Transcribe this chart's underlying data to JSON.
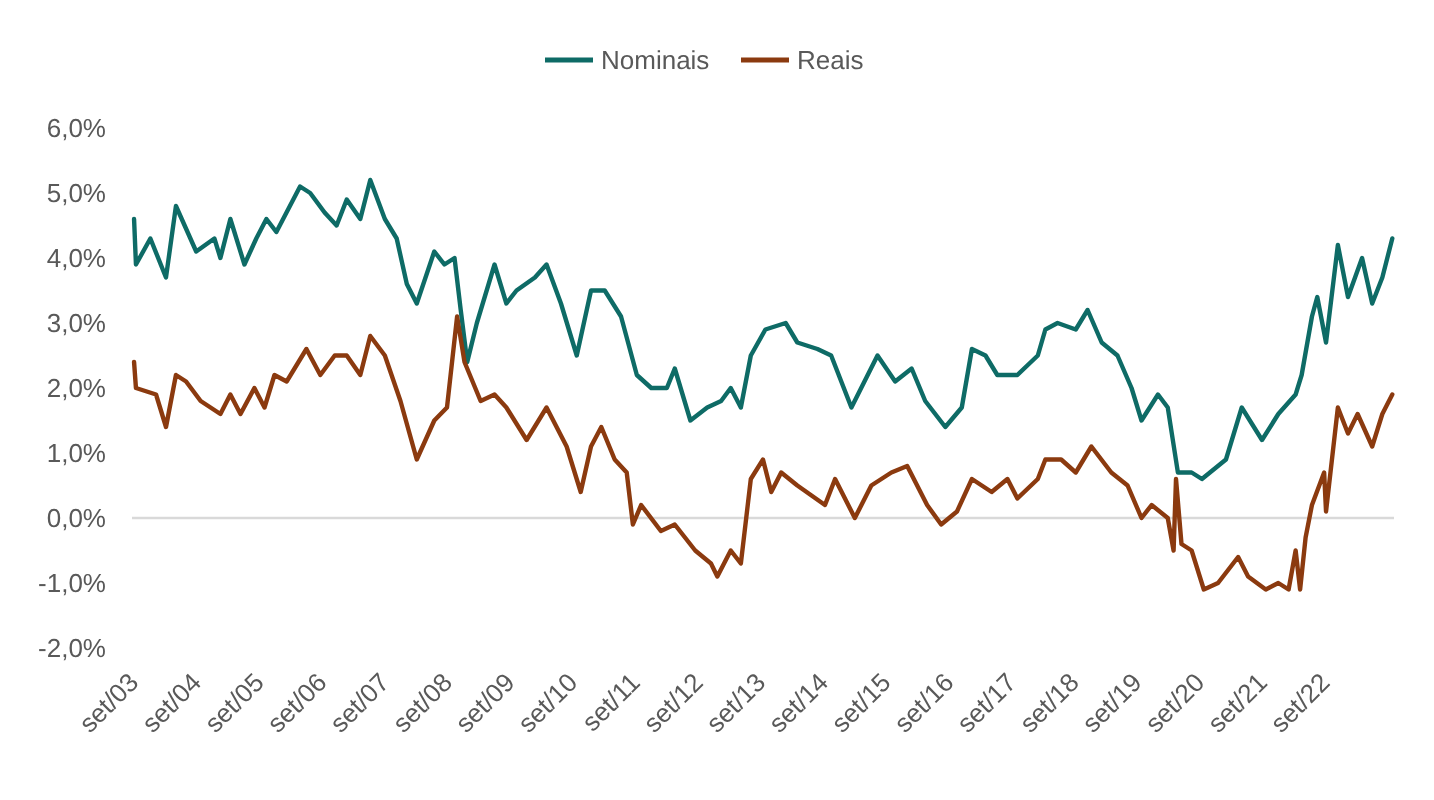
{
  "chart_data": {
    "type": "line",
    "legend": "top",
    "line_style": "solid",
    "xlim": [
      "2003-09-01",
      "2023-10-18"
    ],
    "xticks": [
      {
        "value": "2003-09-01",
        "label": "set/03"
      },
      {
        "value": "2004-09-01",
        "label": "set/04"
      },
      {
        "value": "2005-09-01",
        "label": "set/05"
      },
      {
        "value": "2006-09-01",
        "label": "set/06"
      },
      {
        "value": "2007-09-01",
        "label": "set/07"
      },
      {
        "value": "2008-09-01",
        "label": "set/08"
      },
      {
        "value": "2009-09-01",
        "label": "set/09"
      },
      {
        "value": "2010-09-01",
        "label": "set/10"
      },
      {
        "value": "2011-09-01",
        "label": "set/11"
      },
      {
        "value": "2012-09-01",
        "label": "set/12"
      },
      {
        "value": "2013-09-01",
        "label": "set/13"
      },
      {
        "value": "2014-09-01",
        "label": "set/14"
      },
      {
        "value": "2015-09-01",
        "label": "set/15"
      },
      {
        "value": "2016-09-01",
        "label": "set/16"
      },
      {
        "value": "2017-09-01",
        "label": "set/17"
      },
      {
        "value": "2018-09-01",
        "label": "set/18"
      },
      {
        "value": "2019-09-01",
        "label": "set/19"
      },
      {
        "value": "2020-09-01",
        "label": "set/20"
      },
      {
        "value": "2021-09-01",
        "label": "set/21"
      },
      {
        "value": "2022-09-01",
        "label": "set/22"
      }
    ],
    "ylim": [
      -2,
      6
    ],
    "yticks": [
      {
        "value": -2,
        "label": "-2,0%"
      },
      {
        "value": -1,
        "label": "-1,0%"
      },
      {
        "value": 0,
        "label": "0,0%"
      },
      {
        "value": 1,
        "label": "1,0%"
      },
      {
        "value": 2,
        "label": "2,0%"
      },
      {
        "value": 3,
        "label": "3,0%"
      },
      {
        "value": 4,
        "label": "4,0%"
      },
      {
        "value": 5,
        "label": "5,0%"
      },
      {
        "value": 6,
        "label": "6,0%"
      }
    ],
    "ref_lines": [
      {
        "axis": "y",
        "value": 0,
        "color": "#d9d9d9"
      }
    ],
    "series": [
      {
        "name": "Nominais",
        "color": "#0e6b66",
        "x": [
          "2003-09-13",
          "2003-09-24",
          "2003-12-17",
          "2004-03-17",
          "2004-05-14",
          "2004-09-09",
          "2004-12-24",
          "2005-01-28",
          "2005-03-27",
          "2005-06-17",
          "2005-08-25",
          "2005-10-23",
          "2005-12-20",
          "2006-05-07",
          "2006-07-05",
          "2006-09-27",
          "2006-12-06",
          "2007-02-03",
          "2007-04-23",
          "2007-06-20",
          "2007-09-13",
          "2007-11-21",
          "2008-01-19",
          "2008-03-17",
          "2008-06-27",
          "2008-08-25",
          "2008-10-23",
          "2008-11-28",
          "2009-01-05",
          "2009-03-02",
          "2009-06-13",
          "2009-08-21",
          "2009-10-19",
          "2010-02-03",
          "2010-04-12",
          "2010-07-05",
          "2010-10-05",
          "2010-12-27",
          "2011-03-17",
          "2011-06-20",
          "2011-09-20",
          "2011-12-13",
          "2012-03-13",
          "2012-04-28",
          "2012-07-28",
          "2012-11-03",
          "2013-01-23",
          "2013-03-20",
          "2013-05-18",
          "2013-07-15",
          "2013-10-08",
          "2014-02-03",
          "2014-04-12",
          "2014-08-07",
          "2014-10-26",
          "2015-02-21",
          "2015-07-23",
          "2015-11-03",
          "2016-02-07",
          "2016-04-26",
          "2016-08-21",
          "2016-11-25",
          "2017-01-23",
          "2017-04-12",
          "2017-06-20",
          "2017-10-15",
          "2018-02-11",
          "2018-03-27",
          "2018-06-06",
          "2018-09-20",
          "2018-11-28",
          "2019-02-18",
          "2019-05-21",
          "2019-08-11",
          "2019-10-08",
          "2020-01-12",
          "2020-03-09",
          "2020-05-07",
          "2020-07-26",
          "2020-09-24",
          "2021-02-11",
          "2021-05-14",
          "2021-09-09",
          "2021-12-13",
          "2022-03-24",
          "2022-04-28",
          "2022-06-27",
          "2022-07-28",
          "2022-09-17",
          "2022-11-25",
          "2023-01-23",
          "2023-04-15",
          "2023-06-13",
          "2023-08-11",
          "2023-10-08"
        ],
        "values": [
          4.6,
          3.9,
          4.3,
          3.7,
          4.8,
          4.1,
          4.3,
          4.0,
          4.6,
          3.9,
          4.3,
          4.6,
          4.4,
          5.1,
          5.0,
          4.7,
          4.5,
          4.9,
          4.6,
          5.2,
          4.6,
          4.3,
          3.6,
          3.3,
          4.1,
          3.9,
          4.0,
          3.2,
          2.4,
          3.0,
          3.9,
          3.3,
          3.5,
          3.7,
          3.9,
          3.3,
          2.5,
          3.5,
          3.5,
          3.1,
          2.2,
          2.0,
          2.0,
          2.3,
          1.5,
          1.7,
          1.8,
          2.0,
          1.7,
          2.5,
          2.9,
          3.0,
          2.7,
          2.6,
          2.5,
          1.7,
          2.5,
          2.1,
          2.3,
          1.8,
          1.4,
          1.7,
          2.6,
          2.5,
          2.2,
          2.2,
          2.5,
          2.9,
          3.0,
          2.9,
          3.2,
          2.7,
          2.5,
          2.0,
          1.5,
          1.9,
          1.7,
          0.7,
          0.7,
          0.6,
          0.9,
          1.7,
          1.2,
          1.6,
          1.9,
          2.2,
          3.1,
          3.4,
          2.7,
          4.2,
          3.4,
          4.0,
          3.3,
          3.7,
          4.3
        ]
      },
      {
        "name": "Reais",
        "color": "#8b3a0f",
        "x": [
          "2003-09-13",
          "2003-09-24",
          "2004-01-19",
          "2004-03-17",
          "2004-05-14",
          "2004-07-12",
          "2004-10-05",
          "2005-01-28",
          "2005-03-27",
          "2005-05-25",
          "2005-08-14",
          "2005-10-12",
          "2005-12-09",
          "2006-02-18",
          "2006-06-13",
          "2006-09-02",
          "2006-11-25",
          "2007-02-03",
          "2007-04-23",
          "2007-06-20",
          "2007-09-13",
          "2007-12-13",
          "2008-03-17",
          "2008-06-27",
          "2008-09-09",
          "2008-11-07",
          "2008-12-20",
          "2009-03-24",
          "2009-06-13",
          "2009-08-21",
          "2009-12-17",
          "2010-04-12",
          "2010-08-07",
          "2010-10-28",
          "2010-12-27",
          "2011-02-25",
          "2011-05-14",
          "2011-07-23",
          "2011-08-28",
          "2011-10-15",
          "2012-02-07",
          "2012-04-28",
          "2012-08-25",
          "2012-11-25",
          "2013-01-01",
          "2013-03-20",
          "2013-05-18",
          "2013-07-15",
          "2013-09-24",
          "2013-11-11",
          "2014-01-08",
          "2014-04-12",
          "2014-09-20",
          "2014-11-18",
          "2015-03-13",
          "2015-06-17",
          "2015-10-12",
          "2016-01-12",
          "2016-05-07",
          "2016-07-28",
          "2016-10-28",
          "2017-01-23",
          "2017-05-18",
          "2017-08-18",
          "2017-10-15",
          "2018-02-11",
          "2018-03-27",
          "2018-06-27",
          "2018-09-20",
          "2018-12-20",
          "2019-04-15",
          "2019-07-19",
          "2019-10-08",
          "2019-12-06",
          "2020-03-09",
          "2020-04-12",
          "2020-04-26",
          "2020-05-28",
          "2020-07-26",
          "2020-10-05",
          "2020-12-27",
          "2021-04-23",
          "2021-06-20",
          "2021-10-01",
          "2021-12-13",
          "2022-02-11",
          "2022-03-24",
          "2022-04-19",
          "2022-05-21",
          "2022-06-27",
          "2022-09-06",
          "2022-09-17",
          "2022-11-25",
          "2023-01-23",
          "2023-03-20",
          "2023-06-13",
          "2023-08-11",
          "2023-10-08"
        ],
        "values": [
          2.4,
          2.0,
          1.9,
          1.4,
          2.2,
          2.1,
          1.8,
          1.6,
          1.9,
          1.6,
          2.0,
          1.7,
          2.2,
          2.1,
          2.6,
          2.2,
          2.5,
          2.5,
          2.2,
          2.8,
          2.5,
          1.8,
          0.9,
          1.5,
          1.7,
          3.1,
          2.4,
          1.8,
          1.9,
          1.7,
          1.2,
          1.7,
          1.1,
          0.4,
          1.1,
          1.4,
          0.9,
          0.7,
          -0.1,
          0.2,
          -0.2,
          -0.1,
          -0.5,
          -0.7,
          -0.9,
          -0.5,
          -0.7,
          0.6,
          0.9,
          0.4,
          0.7,
          0.5,
          0.2,
          0.6,
          0.0,
          0.5,
          0.7,
          0.8,
          0.2,
          -0.1,
          0.1,
          0.6,
          0.4,
          0.6,
          0.3,
          0.6,
          0.9,
          0.9,
          0.7,
          1.1,
          0.7,
          0.5,
          0.0,
          0.2,
          0.0,
          -0.5,
          0.6,
          -0.4,
          -0.5,
          -1.1,
          -1.0,
          -0.6,
          -0.9,
          -1.1,
          -1.0,
          -1.1,
          -0.5,
          -1.1,
          -0.3,
          0.2,
          0.7,
          0.1,
          1.7,
          1.3,
          1.6,
          1.1,
          1.6,
          1.9
        ]
      }
    ]
  }
}
